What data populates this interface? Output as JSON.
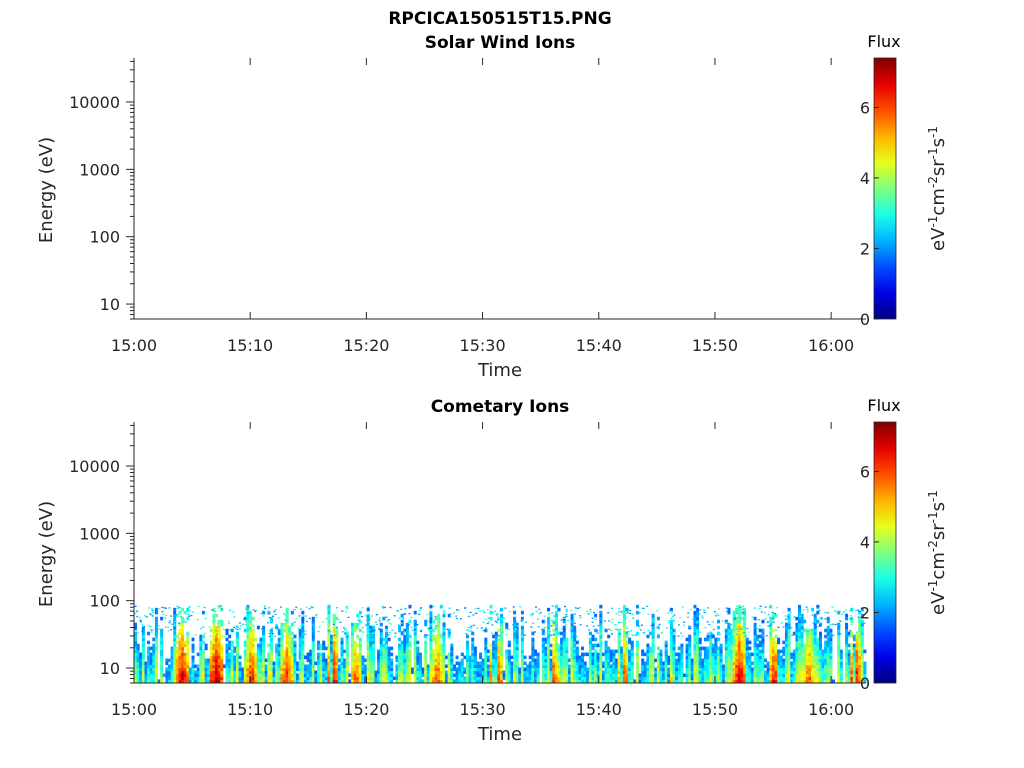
{
  "figure": {
    "title": "RPCICA150515T15.PNG"
  },
  "chart_data": [
    {
      "type": "heatmap",
      "title": "Solar Wind Ions",
      "xlabel": "Time",
      "ylabel": "Energy (eV)",
      "x_ticks": [
        "15:00",
        "15:10",
        "15:20",
        "15:30",
        "15:40",
        "15:50",
        "16:00"
      ],
      "x_range": [
        "15:00",
        "16:03"
      ],
      "y_scale": "log",
      "y_ticks": [
        10,
        100,
        1000,
        10000
      ],
      "y_tick_labels": [
        "10",
        "100",
        "1000",
        "10000"
      ],
      "y_range": [
        6,
        45000
      ],
      "colorbar": {
        "title": "Flux",
        "label": "eV-1cm-2sr-1s-1",
        "colormap": "jet",
        "range": [
          0,
          7.4
        ],
        "ticks": [
          0,
          2,
          4,
          6
        ],
        "tick_labels": [
          "0",
          "2",
          "4",
          "6"
        ]
      },
      "data": "empty"
    },
    {
      "type": "heatmap",
      "title": "Cometary Ions",
      "xlabel": "Time",
      "ylabel": "Energy (eV)",
      "x_ticks": [
        "15:00",
        "15:10",
        "15:20",
        "15:30",
        "15:40",
        "15:50",
        "16:00"
      ],
      "x_range": [
        "15:00",
        "16:03"
      ],
      "y_scale": "log",
      "y_ticks": [
        10,
        100,
        1000,
        10000
      ],
      "y_tick_labels": [
        "10",
        "100",
        "1000",
        "10000"
      ],
      "y_range": [
        6,
        45000
      ],
      "colorbar": {
        "title": "Flux",
        "label": "eV-1cm-2sr-1s-1",
        "colormap": "jet",
        "range": [
          0,
          7.4
        ],
        "ticks": [
          0,
          2,
          4,
          6
        ],
        "tick_labels": [
          "0",
          "2",
          "4",
          "6"
        ]
      },
      "energy_max_eV": 85,
      "flux_pattern": "intermittent vertical bursts between 6 and 85 eV, strongest near lowest energies",
      "strong_bursts": [
        {
          "time": "15:04",
          "peak_flux": 7.0
        },
        {
          "time": "15:07",
          "peak_flux": 7.2
        },
        {
          "time": "15:10",
          "peak_flux": 6.5
        },
        {
          "time": "15:13",
          "peak_flux": 6.5
        },
        {
          "time": "15:17",
          "peak_flux": 6.8
        },
        {
          "time": "15:19",
          "peak_flux": 6.0
        },
        {
          "time": "15:26",
          "peak_flux": 6.2
        },
        {
          "time": "15:31",
          "peak_flux": 6.8
        },
        {
          "time": "15:36",
          "peak_flux": 6.0
        },
        {
          "time": "15:42",
          "peak_flux": 6.2
        },
        {
          "time": "15:52",
          "peak_flux": 7.0
        },
        {
          "time": "15:55",
          "peak_flux": 6.5
        },
        {
          "time": "15:58",
          "peak_flux": 6.0
        },
        {
          "time": "16:02",
          "peak_flux": 6.8
        }
      ]
    }
  ]
}
